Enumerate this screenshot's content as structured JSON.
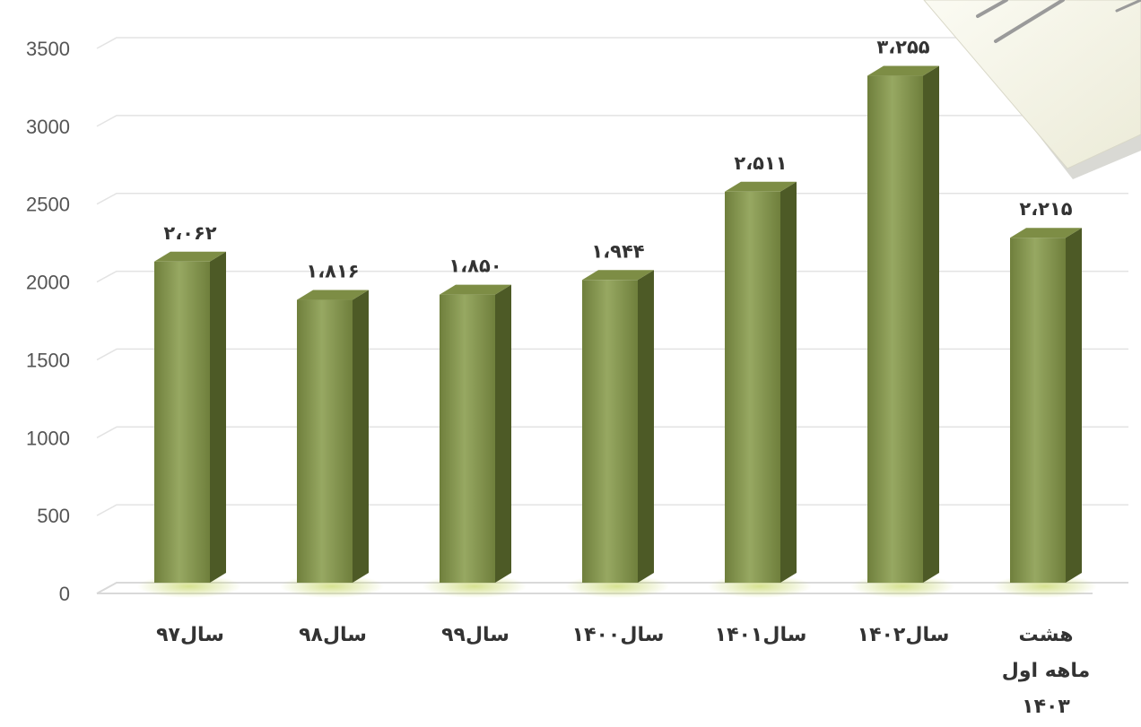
{
  "chart_data": {
    "type": "bar",
    "categories": [
      "سال۹۷",
      "سال۹۸",
      "سال۹۹",
      "سال۱۴۰۰",
      "سال۱۴۰۱",
      "سال۱۴۰۲",
      "هشت ماهه اول ۱۴۰۳"
    ],
    "category_lines": [
      [
        "سال۹۷"
      ],
      [
        "سال۹۸"
      ],
      [
        "سال۹۹"
      ],
      [
        "سال۱۴۰۰"
      ],
      [
        "سال۱۴۰۱"
      ],
      [
        "سال۱۴۰۲"
      ],
      [
        "هشت",
        "ماهه اول",
        "۱۴۰۳"
      ]
    ],
    "values": [
      2062,
      1816,
      1850,
      1944,
      2511,
      3255,
      2215
    ],
    "value_labels": [
      "۲،۰۶۲",
      "۱،۸۱۶",
      "۱،۸۵۰",
      "۱،۹۴۴",
      "۲،۵۱۱",
      "۳،۲۵۵",
      "۲،۲۱۵"
    ],
    "yticks": [
      0,
      500,
      1000,
      1500,
      2000,
      2500,
      3000,
      3500
    ],
    "ylim": [
      0,
      3500
    ],
    "grid": true,
    "legend": "none",
    "colors": {
      "bar_front_light": "#97a862",
      "bar_front_dark": "#6f7f3c",
      "bar_side": "#4d5a26",
      "bar_top": "#7d8d45",
      "grid": "#e3e3e3",
      "floor": "#d9d9d9"
    }
  }
}
